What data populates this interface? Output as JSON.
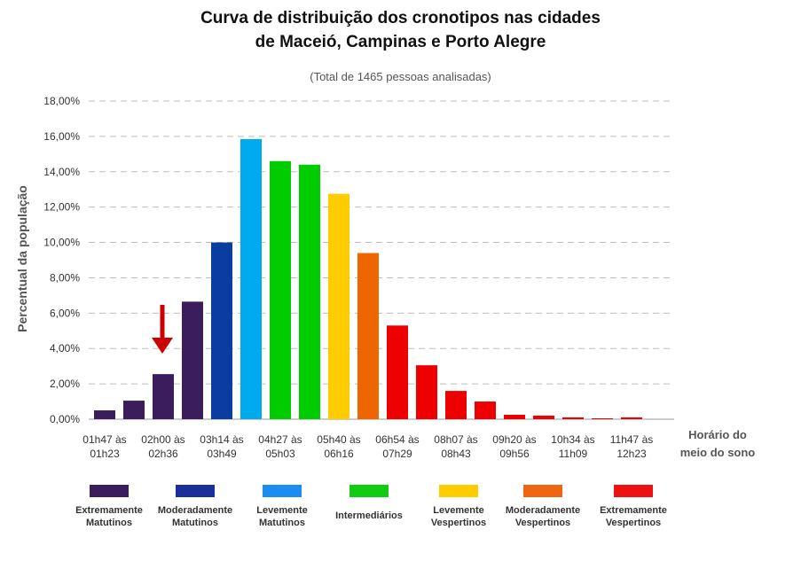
{
  "title_line1": "Curva de distribuição dos cronotipos nas cidades",
  "title_line2": "de  Maceió, Campinas e Porto Alegre",
  "subtitle": "(Total de 1465  pessoas analisadas)",
  "chart_data": {
    "type": "bar",
    "ylabel": "Percentual  da população",
    "xlabel": "Horário do meio do sono",
    "ylim": [
      0,
      18
    ],
    "yticks": [
      "0,00%",
      "2,00%",
      "4,00%",
      "6,00%",
      "8,00%",
      "10,00%",
      "12,00%",
      "14,00%",
      "16,00%",
      "18,00%"
    ],
    "grid": true,
    "values": [
      0.5,
      1.05,
      2.55,
      6.65,
      10.0,
      15.85,
      14.6,
      14.4,
      12.75,
      9.4,
      5.3,
      3.05,
      1.6,
      1.0,
      0.25,
      0.2,
      0.1,
      0.05,
      0.1
    ],
    "bar_colors": [
      "#3b1d5e",
      "#3b1d5e",
      "#3b1d5e",
      "#3b1d5e",
      "#0b3ca0",
      "#00aaee",
      "#00cc00",
      "#00cc00",
      "#ffcc00",
      "#ee6600",
      "#ee0000",
      "#ee0000",
      "#ee0000",
      "#ee0000",
      "#ee0000",
      "#ee0000",
      "#ee0000",
      "#ee0000",
      "#ee0000"
    ],
    "xtick_labels": [
      [
        "01h47 às",
        "01h23"
      ],
      [
        "02h00 às",
        "02h36"
      ],
      [
        "03h14 às",
        "03h49"
      ],
      [
        "04h27 às",
        "05h03"
      ],
      [
        "05h40 às",
        "06h16"
      ],
      [
        "06h54 às",
        "07h29"
      ],
      [
        "08h07 às",
        "08h43"
      ],
      [
        "09h20 às",
        "09h56"
      ],
      [
        "10h34 às",
        "11h09"
      ],
      [
        "11h47 às",
        "12h23"
      ]
    ],
    "arrow_annotation": {
      "bar_index": 2,
      "color": "#cc0000"
    },
    "legend": [
      {
        "label1": "Extremamente",
        "label2": "Matutinos",
        "color": "#3b1d5e"
      },
      {
        "label1": "Moderadamente",
        "label2": "Matutinos",
        "color": "#1a2f9a"
      },
      {
        "label1": "Levemente",
        "label2": "Matutinos",
        "color": "#1b8cf0"
      },
      {
        "label1": "Intermediários",
        "label2": "",
        "color": "#11cc11"
      },
      {
        "label1": "Levemente",
        "label2": "Vespertinos",
        "color": "#ffcc00"
      },
      {
        "label1": "Moderadamente",
        "label2": "Vespertinos",
        "color": "#ee6611"
      },
      {
        "label1": "Extremamente",
        "label2": "Vespertinos",
        "color": "#ee1111"
      }
    ]
  }
}
